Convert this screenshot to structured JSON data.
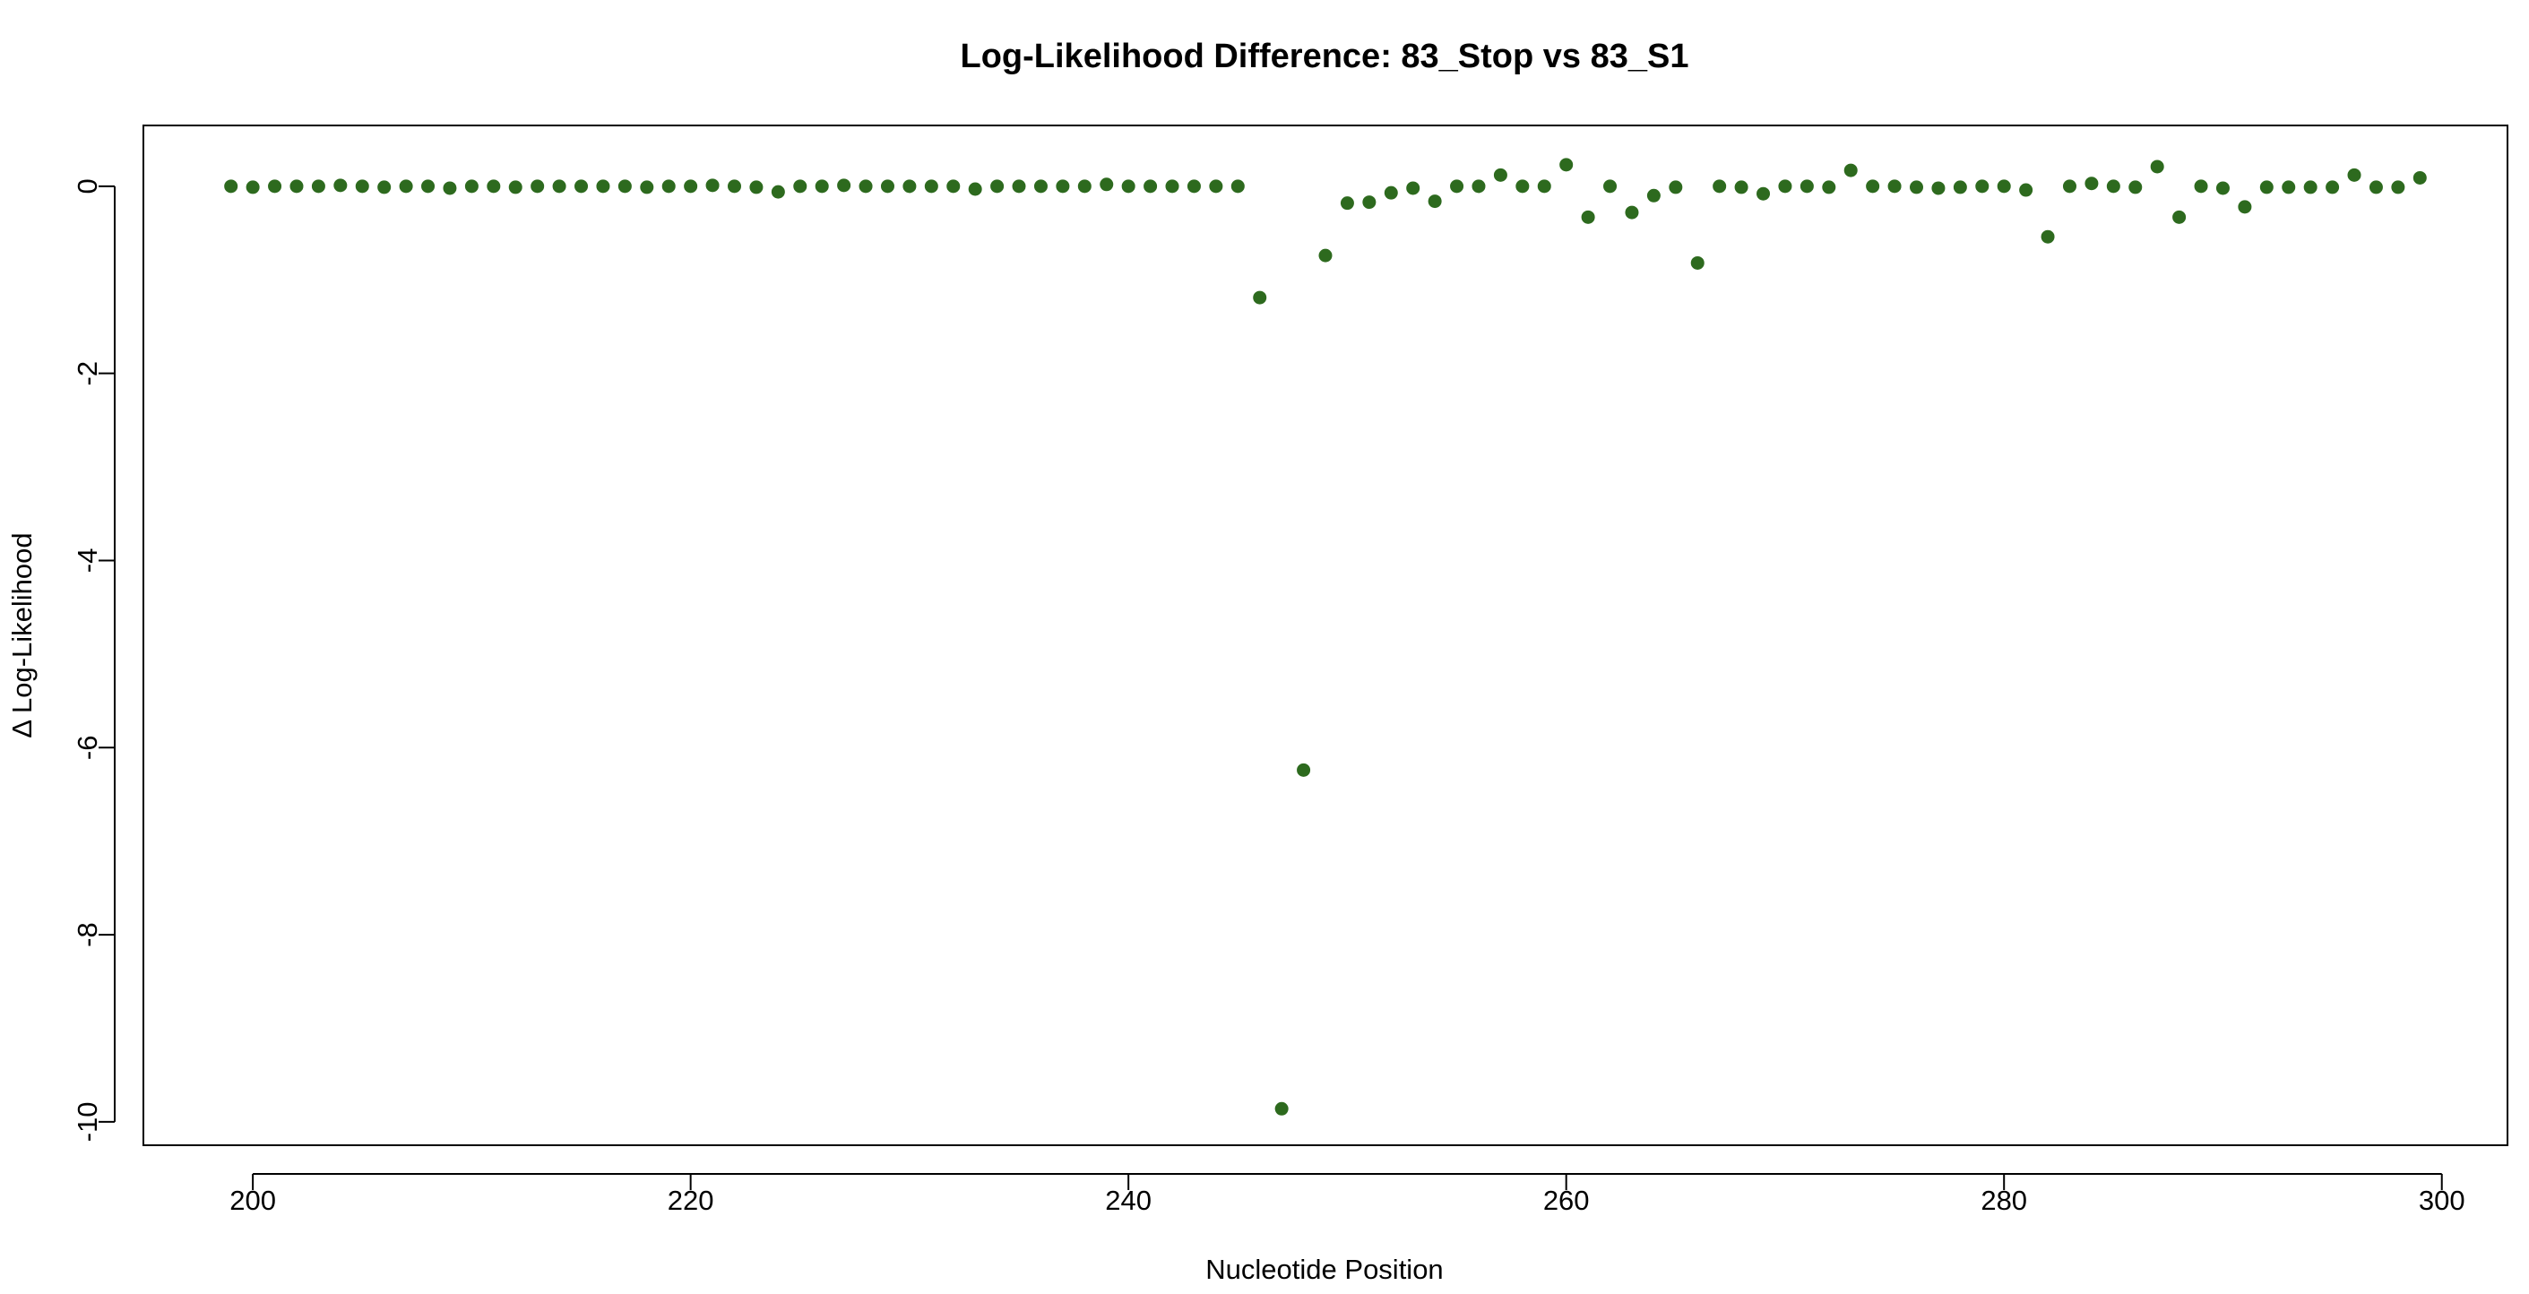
{
  "chart_data": {
    "type": "scatter",
    "title": "Log-Likelihood Difference: 83_Stop vs 83_S1",
    "xlabel": "Nucleotide Position",
    "ylabel": "Δ Log-Likelihood",
    "xlim": [
      195,
      303
    ],
    "ylim": [
      -10.25,
      0.65
    ],
    "x_ticks": [
      200,
      220,
      240,
      260,
      280,
      300
    ],
    "x_tick_labels": [
      "200",
      "220",
      "240",
      "260",
      "280",
      "300"
    ],
    "y_ticks": [
      0,
      -2,
      -4,
      -6,
      -8,
      -10
    ],
    "y_tick_labels": [
      "0",
      "-2",
      "-4",
      "-6",
      "-8",
      "-10"
    ],
    "grid": false,
    "point_color": "#2d6a1e",
    "series": [
      {
        "x": [
          199,
          200,
          201,
          202,
          203,
          204,
          205,
          206,
          207,
          208,
          209,
          210,
          211,
          212,
          213,
          214,
          215,
          216,
          217,
          218,
          219,
          220,
          221,
          222,
          223,
          224,
          225,
          226,
          227,
          228,
          229,
          230,
          231,
          232,
          233,
          234,
          235,
          236,
          237,
          238,
          239,
          240,
          241,
          242,
          243,
          244,
          245,
          246,
          247,
          248,
          249,
          250,
          251,
          252,
          253,
          254,
          255,
          256,
          257,
          258,
          259,
          260,
          261,
          262,
          263,
          264,
          265,
          266,
          267,
          268,
          269,
          270,
          271,
          272,
          273,
          274,
          275,
          276,
          277,
          278,
          279,
          280,
          281,
          282,
          283,
          284,
          285,
          286,
          287,
          288,
          289,
          290,
          291,
          292,
          293,
          294,
          295,
          296,
          297,
          298,
          299
        ],
        "y": [
          0,
          -0.01,
          0,
          0,
          0,
          0.01,
          0,
          -0.01,
          0,
          0,
          -0.02,
          0,
          0,
          -0.01,
          0,
          0,
          0,
          0,
          0,
          -0.01,
          0,
          0,
          0.01,
          0,
          -0.01,
          -0.06,
          0,
          0,
          0.01,
          0,
          0,
          0,
          0,
          0,
          -0.03,
          0,
          0,
          0,
          0,
          0,
          0.02,
          0,
          0,
          0,
          0,
          0,
          0,
          -1.19,
          -9.86,
          -6.24,
          -0.74,
          -0.18,
          -0.17,
          -0.07,
          -0.02,
          -0.16,
          0,
          0,
          0.12,
          0,
          0,
          0.23,
          -0.33,
          0,
          -0.28,
          -0.1,
          -0.01,
          -0.82,
          0,
          -0.01,
          -0.08,
          0,
          0,
          -0.01,
          0.17,
          0,
          0,
          -0.01,
          -0.02,
          -0.01,
          0,
          0,
          -0.04,
          -0.54,
          0,
          0.03,
          0,
          -0.01,
          0.21,
          -0.33,
          0,
          -0.02,
          -0.22,
          -0.01,
          -0.01,
          -0.01,
          -0.01,
          0.12,
          -0.01,
          -0.01,
          0.09
        ]
      }
    ]
  }
}
